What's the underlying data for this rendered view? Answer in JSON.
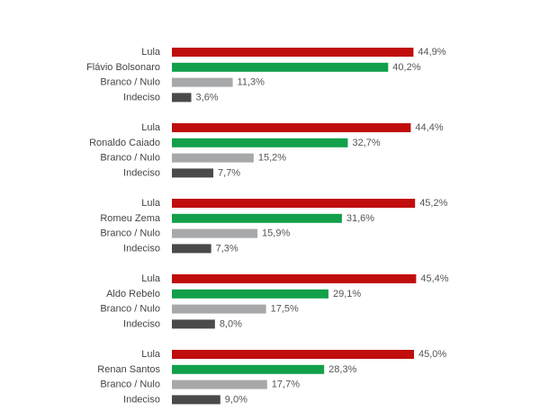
{
  "chart_data": {
    "type": "bar",
    "orientation": "horizontal",
    "xlim": [
      0,
      50
    ],
    "grid": false,
    "colors": {
      "Lula": "#c00d0d",
      "candidate": "#12a04a",
      "Branco / Nulo": "#a6a8a9",
      "Indeciso": "#4a4a4a"
    },
    "groups": [
      {
        "rows": [
          {
            "label": "Lula",
            "value": 44.9,
            "value_label": "44,9%",
            "role": "Lula"
          },
          {
            "label": "Flávio Bolsonaro",
            "value": 40.2,
            "value_label": "40,2%",
            "role": "candidate"
          },
          {
            "label": "Branco / Nulo",
            "value": 11.3,
            "value_label": "11,3%",
            "role": "Branco / Nulo"
          },
          {
            "label": "Indeciso",
            "value": 3.6,
            "value_label": "3,6%",
            "role": "Indeciso"
          }
        ]
      },
      {
        "rows": [
          {
            "label": "Lula",
            "value": 44.4,
            "value_label": "44,4%",
            "role": "Lula"
          },
          {
            "label": "Ronaldo Caiado",
            "value": 32.7,
            "value_label": "32,7%",
            "role": "candidate"
          },
          {
            "label": "Branco / Nulo",
            "value": 15.2,
            "value_label": "15,2%",
            "role": "Branco / Nulo"
          },
          {
            "label": "Indeciso",
            "value": 7.7,
            "value_label": "7,7%",
            "role": "Indeciso"
          }
        ]
      },
      {
        "rows": [
          {
            "label": "Lula",
            "value": 45.2,
            "value_label": "45,2%",
            "role": "Lula"
          },
          {
            "label": "Romeu Zema",
            "value": 31.6,
            "value_label": "31,6%",
            "role": "candidate"
          },
          {
            "label": "Branco / Nulo",
            "value": 15.9,
            "value_label": "15,9%",
            "role": "Branco / Nulo"
          },
          {
            "label": "Indeciso",
            "value": 7.3,
            "value_label": "7,3%",
            "role": "Indeciso"
          }
        ]
      },
      {
        "rows": [
          {
            "label": "Lula",
            "value": 45.4,
            "value_label": "45,4%",
            "role": "Lula"
          },
          {
            "label": "Aldo Rebelo",
            "value": 29.1,
            "value_label": "29,1%",
            "role": "candidate"
          },
          {
            "label": "Branco / Nulo",
            "value": 17.5,
            "value_label": "17,5%",
            "role": "Branco / Nulo"
          },
          {
            "label": "Indeciso",
            "value": 8.0,
            "value_label": "8,0%",
            "role": "Indeciso"
          }
        ]
      },
      {
        "rows": [
          {
            "label": "Lula",
            "value": 45.0,
            "value_label": "45,0%",
            "role": "Lula"
          },
          {
            "label": "Renan Santos",
            "value": 28.3,
            "value_label": "28,3%",
            "role": "candidate"
          },
          {
            "label": "Branco / Nulo",
            "value": 17.7,
            "value_label": "17,7%",
            "role": "Branco / Nulo"
          },
          {
            "label": "Indeciso",
            "value": 9.0,
            "value_label": "9,0%",
            "role": "Indeciso"
          }
        ]
      }
    ]
  }
}
